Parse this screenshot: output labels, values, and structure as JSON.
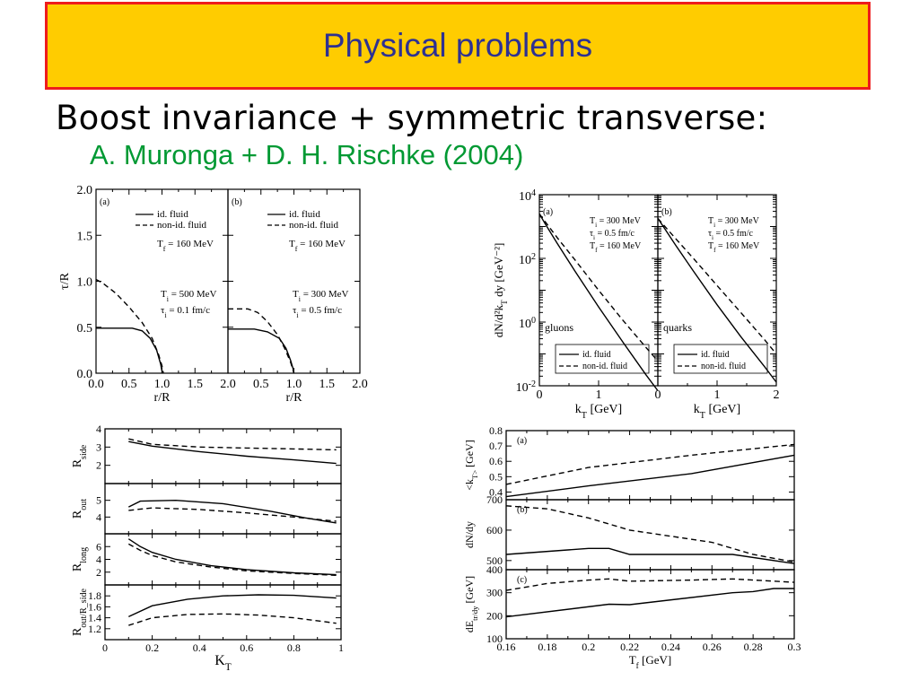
{
  "title": "Physical problems",
  "subtitle": "Boost invariance + symmetric transverse:",
  "authors": "A. Muronga + D. H. Rischke (2004)",
  "colors": {
    "title_bg": "#ffcc00",
    "title_border": "#ee1c1c",
    "title_text": "#2e3192",
    "authors": "#009933"
  },
  "chart_data": [
    {
      "type": "line",
      "id": "freezeout",
      "xlabel": "r/R",
      "ylabel": "τ/R",
      "xlim": [
        0,
        2
      ],
      "ylim": [
        0,
        2
      ],
      "xticks": [
        "0.0",
        "0.5",
        "1.0",
        "1.5",
        "2.0"
      ],
      "yticks": [
        "0.0",
        "0.5",
        "1.0",
        "1.5",
        "2.0"
      ],
      "legend": [
        "id. fluid",
        "non-id. fluid"
      ],
      "panels": [
        {
          "label": "(a)",
          "ann": [
            "T_f = 160 MeV",
            "T_i = 500 MeV",
            "τ_i = 0.1 fm/c"
          ],
          "series": [
            {
              "name": "id. fluid",
              "dash": false,
              "x": [
                0,
                0.55,
                0.7,
                0.82,
                0.92,
                0.98,
                1.0,
                1.0
              ],
              "y": [
                0.49,
                0.49,
                0.46,
                0.38,
                0.25,
                0.1,
                0.02,
                0
              ]
            },
            {
              "name": "non-id. fluid",
              "dash": true,
              "x": [
                0,
                0.1,
                0.3,
                0.5,
                0.7,
                0.85,
                0.95,
                1.0,
                1.02
              ],
              "y": [
                1.02,
                0.98,
                0.87,
                0.72,
                0.55,
                0.38,
                0.2,
                0.08,
                0
              ]
            }
          ]
        },
        {
          "label": "(b)",
          "ann": [
            "T_f = 160 MeV",
            "T_i = 300 MeV",
            "τ_i = 0.5 fm/c"
          ],
          "series": [
            {
              "name": "id. fluid",
              "dash": false,
              "x": [
                0,
                0.4,
                0.6,
                0.78,
                0.88,
                0.95,
                0.99,
                1.0
              ],
              "y": [
                0.48,
                0.48,
                0.45,
                0.38,
                0.27,
                0.14,
                0.04,
                0
              ]
            },
            {
              "name": "non-id. fluid",
              "dash": true,
              "x": [
                0,
                0.3,
                0.45,
                0.6,
                0.75,
                0.86,
                0.95,
                1.0
              ],
              "y": [
                0.7,
                0.7,
                0.66,
                0.56,
                0.42,
                0.27,
                0.12,
                0
              ]
            }
          ]
        }
      ]
    },
    {
      "type": "line",
      "id": "spectra",
      "xlabel": "k_T [GeV]",
      "ylabel": "dN/d²k_T dy [GeV⁻²]",
      "yscale": "log",
      "xlim": [
        0,
        2
      ],
      "ylim": [
        0.01,
        10000
      ],
      "xticks": [
        "0",
        "1",
        "2"
      ],
      "yticks": [
        "10^-2",
        "10^0",
        "10^2",
        "10^4"
      ],
      "legend": [
        "id. fluid",
        "non-id. fluid"
      ],
      "panels": [
        {
          "label": "(a)",
          "particle": "gluons",
          "ann": [
            "T_i = 300 MeV",
            "τ_i = 0.5 fm/c",
            "T_f = 160 MeV"
          ],
          "series": [
            {
              "name": "id. fluid",
              "dash": false,
              "x": [
                0,
                0.1,
                0.3,
                0.6,
                1.0,
                1.4,
                1.8,
                2.0
              ],
              "y": [
                2500,
                1200,
                300,
                40,
                3,
                0.25,
                0.022,
                0.007
              ]
            },
            {
              "name": "non-id. fluid",
              "dash": true,
              "x": [
                0,
                0.1,
                0.3,
                0.6,
                1.0,
                1.4,
                1.8,
                2.0
              ],
              "y": [
                2500,
                1400,
                450,
                90,
                10,
                1.2,
                0.16,
                0.06
              ]
            }
          ]
        },
        {
          "label": "(b)",
          "particle": "quarks",
          "ann": [
            "T_i = 300 MeV",
            "τ_i = 0.5 fm/c",
            "T_f = 160 MeV"
          ],
          "series": [
            {
              "name": "id. fluid",
              "dash": false,
              "x": [
                0,
                0.1,
                0.3,
                0.6,
                1.0,
                1.4,
                1.8,
                2.0
              ],
              "y": [
                1800,
                950,
                260,
                40,
                3.5,
                0.35,
                0.04,
                0.013
              ]
            },
            {
              "name": "non-id. fluid",
              "dash": true,
              "x": [
                0,
                0.1,
                0.3,
                0.6,
                1.0,
                1.4,
                1.8,
                2.0
              ],
              "y": [
                1800,
                1100,
                420,
                100,
                14,
                2,
                0.28,
                0.1
              ]
            }
          ]
        }
      ]
    },
    {
      "type": "line",
      "id": "hbt",
      "xlabel": "K_T",
      "xlim": [
        0,
        1
      ],
      "xticks": [
        "0",
        "0.2",
        "0.4",
        "0.6",
        "0.8",
        "1"
      ],
      "panels": [
        {
          "ylabel": "R_side",
          "ylim": [
            1,
            4
          ],
          "yticks": [
            "2",
            "3",
            "4"
          ],
          "series": [
            {
              "dash": false,
              "x": [
                0.1,
                0.2,
                0.4,
                0.6,
                0.8,
                0.98
              ],
              "y": [
                3.3,
                3.05,
                2.75,
                2.5,
                2.3,
                2.1
              ]
            },
            {
              "dash": true,
              "x": [
                0.1,
                0.2,
                0.4,
                0.6,
                0.8,
                0.98
              ],
              "y": [
                3.45,
                3.15,
                3.0,
                2.95,
                2.9,
                2.85
              ]
            }
          ]
        },
        {
          "ylabel": "R_out",
          "ylim": [
            3,
            6
          ],
          "yticks": [
            "4",
            "5"
          ],
          "series": [
            {
              "dash": false,
              "x": [
                0.1,
                0.15,
                0.3,
                0.5,
                0.7,
                0.85,
                0.98
              ],
              "y": [
                4.6,
                4.95,
                5.0,
                4.8,
                4.35,
                3.95,
                3.65
              ]
            },
            {
              "dash": true,
              "x": [
                0.1,
                0.2,
                0.4,
                0.6,
                0.8,
                0.98
              ],
              "y": [
                4.4,
                4.55,
                4.45,
                4.25,
                4.0,
                3.75
              ]
            }
          ]
        },
        {
          "ylabel": "R_long",
          "ylim": [
            0,
            8
          ],
          "yticks": [
            "2",
            "4",
            "6"
          ],
          "series": [
            {
              "dash": false,
              "x": [
                0.1,
                0.15,
                0.2,
                0.3,
                0.45,
                0.6,
                0.8,
                0.98
              ],
              "y": [
                7.2,
                6.0,
                5.1,
                4.0,
                3.0,
                2.4,
                1.9,
                1.6
              ]
            },
            {
              "dash": true,
              "x": [
                0.1,
                0.15,
                0.2,
                0.3,
                0.45,
                0.6,
                0.8,
                0.98
              ],
              "y": [
                6.4,
                5.4,
                4.6,
                3.6,
                2.8,
                2.2,
                1.8,
                1.5
              ]
            }
          ]
        },
        {
          "ylabel": "R_out/R_side",
          "ylim": [
            1.0,
            2.0
          ],
          "yticks": [
            "1.2",
            "1.4",
            "1.6",
            "1.8"
          ],
          "series": [
            {
              "dash": false,
              "x": [
                0.1,
                0.2,
                0.35,
                0.5,
                0.65,
                0.8,
                0.98
              ],
              "y": [
                1.42,
                1.62,
                1.74,
                1.8,
                1.82,
                1.81,
                1.76
              ]
            },
            {
              "dash": true,
              "x": [
                0.1,
                0.2,
                0.35,
                0.5,
                0.65,
                0.8,
                0.98
              ],
              "y": [
                1.26,
                1.4,
                1.46,
                1.47,
                1.45,
                1.4,
                1.3
              ]
            }
          ]
        }
      ]
    },
    {
      "type": "line",
      "id": "freeze-temp",
      "xlabel": "T_f [GeV]",
      "xlim": [
        0.16,
        0.3
      ],
      "xticks": [
        "0.16",
        "0.18",
        "0.2",
        "0.22",
        "0.24",
        "0.26",
        "0.28",
        "0.3"
      ],
      "panels": [
        {
          "label": "(a)",
          "ylabel": "<k_T> [GeV]",
          "ylim": [
            0.35,
            0.8
          ],
          "yticks": [
            "0.4",
            "0.5",
            "0.6",
            "0.7",
            "0.8"
          ],
          "series": [
            {
              "dash": false,
              "x": [
                0.16,
                0.2,
                0.25,
                0.3
              ],
              "y": [
                0.37,
                0.44,
                0.52,
                0.64
              ]
            },
            {
              "dash": true,
              "x": [
                0.16,
                0.2,
                0.25,
                0.3
              ],
              "y": [
                0.45,
                0.56,
                0.64,
                0.71
              ]
            }
          ]
        },
        {
          "label": "(b)",
          "ylabel": "dN/dy",
          "ylim": [
            470,
            700
          ],
          "yticks": [
            "500",
            "600",
            "700"
          ],
          "series": [
            {
              "dash": false,
              "x": [
                0.16,
                0.2,
                0.21,
                0.22,
                0.27,
                0.3
              ],
              "y": [
                520,
                540,
                540,
                520,
                520,
                490
              ]
            },
            {
              "dash": true,
              "x": [
                0.16,
                0.18,
                0.2,
                0.22,
                0.26,
                0.28,
                0.3
              ],
              "y": [
                680,
                670,
                640,
                600,
                560,
                520,
                495
              ]
            }
          ]
        },
        {
          "label": "(c)",
          "ylabel": "dE_tr/dy [GeV]",
          "ylim": [
            100,
            400
          ],
          "yticks": [
            "100",
            "200",
            "300",
            "400"
          ],
          "series": [
            {
              "dash": false,
              "x": [
                0.16,
                0.21,
                0.22,
                0.27,
                0.28,
                0.29,
                0.3
              ],
              "y": [
                195,
                250,
                248,
                300,
                305,
                318,
                318
              ]
            },
            {
              "dash": true,
              "x": [
                0.16,
                0.18,
                0.2,
                0.21,
                0.22,
                0.25,
                0.27,
                0.29,
                0.3
              ],
              "y": [
                310,
                340,
                355,
                360,
                350,
                355,
                360,
                350,
                345
              ]
            }
          ]
        }
      ]
    }
  ]
}
